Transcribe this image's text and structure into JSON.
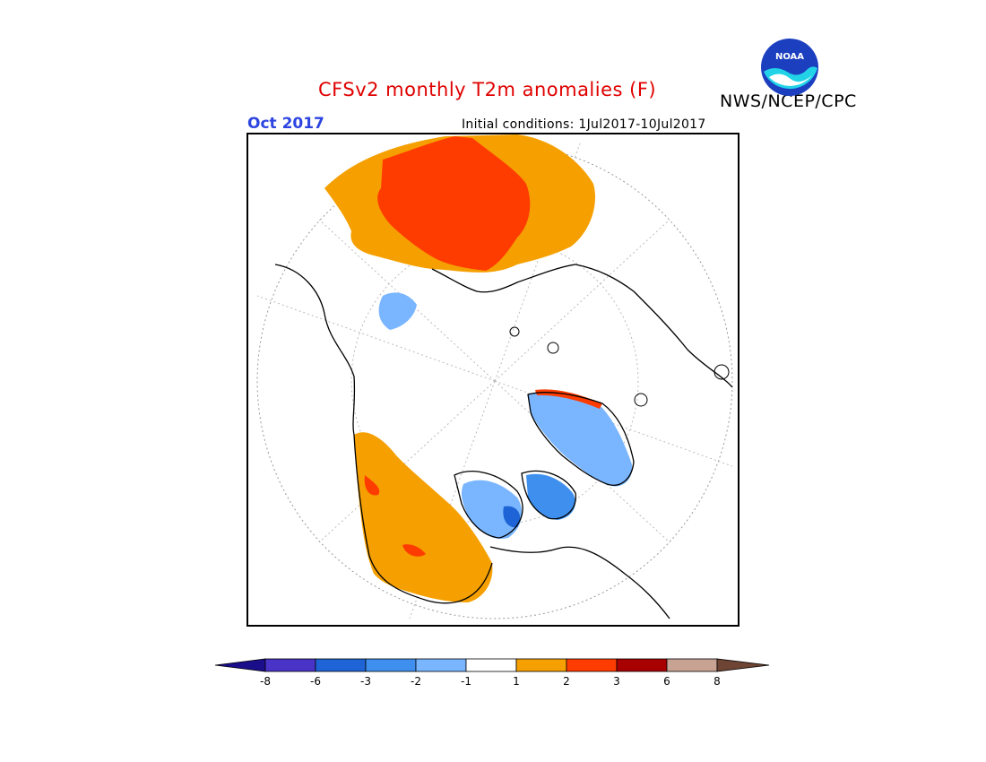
{
  "header": {
    "title": "CFSv2 monthly T2m anomalies (F)",
    "agency": "NWS/NCEP/CPC",
    "month": "Oct 2017",
    "initial_conditions": "Initial conditions: 1Jul2017-10Jul2017",
    "logo_text": "NOAA"
  },
  "map": {
    "projection": "north polar stereographic",
    "features": [
      {
        "name": "Siberia / northern Asia",
        "category": "1 to 2",
        "color": "#f5a000"
      },
      {
        "name": "central Siberia core",
        "category": "2 to 3",
        "color": "#ff3c00"
      },
      {
        "name": "western North America",
        "category": "1 to 2",
        "color": "#f5a000"
      },
      {
        "name": "Canadian Arctic Archipelago",
        "category": "-1 to -3",
        "color": "#3f90ee"
      },
      {
        "name": "Greenland interior",
        "category": "-1 to -2",
        "color": "#79b6ff"
      },
      {
        "name": "Alaska / Beaufort coast",
        "category": "-1 to -2",
        "color": "#79b6ff"
      },
      {
        "name": "north Greenland coast",
        "category": "2 to 6",
        "color": "#ff3c00"
      }
    ]
  },
  "colorbar": {
    "tick_labels": [
      "-8",
      "-6",
      "-3",
      "-2",
      "-1",
      "1",
      "2",
      "3",
      "6",
      "8"
    ],
    "colors": [
      "#1a0e8a",
      "#4a33c7",
      "#1f64d6",
      "#3f90ee",
      "#79b6ff",
      "#ffffff",
      "#f5a000",
      "#ff3c00",
      "#a80000",
      "#c8a293",
      "#6e4434"
    ]
  }
}
